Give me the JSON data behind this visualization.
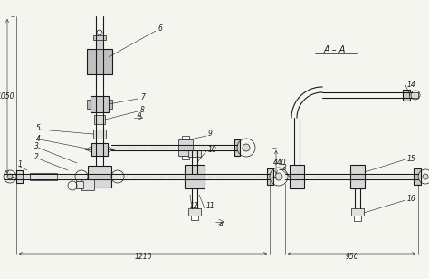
{
  "bg_color": "#f5f5f0",
  "lc": "#1a1a1a",
  "figsize": [
    4.74,
    3.08
  ],
  "dpi": 100,
  "dim_1210": "1210",
  "dim_950": "950",
  "dim_1050": "1050",
  "dim_440": "440",
  "section_label": "A – A",
  "labels": [
    "1",
    "2",
    "3",
    "4",
    "5",
    "6",
    "7",
    "8",
    "9",
    "10",
    "11",
    "12",
    "13",
    "14",
    "15",
    "16"
  ]
}
